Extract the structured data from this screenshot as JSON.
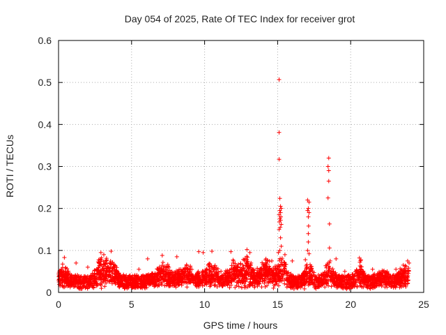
{
  "chart_data": {
    "type": "scatter",
    "title": "Day 054 of 2025, Rate Of TEC Index for receiver grot",
    "xlabel": "GPS time / hours",
    "ylabel": "ROTI / TECUs",
    "xlim": [
      0,
      25
    ],
    "ylim": [
      0,
      0.6
    ],
    "xticks": [
      "0",
      "5",
      "10",
      "15",
      "20",
      "25"
    ],
    "yticks": [
      "0",
      "0.1",
      "0.2",
      "0.3",
      "0.4",
      "0.5",
      "0.6"
    ],
    "grid": true,
    "marker": "+",
    "color": "#ff0000",
    "background": {
      "x_range": [
        0,
        24
      ],
      "base_range": [
        0.01,
        0.04
      ],
      "bumps": [
        {
          "center": 0.3,
          "width": 0.4,
          "amp": 0.03
        },
        {
          "center": 2.9,
          "width": 0.4,
          "amp": 0.05
        },
        {
          "center": 3.6,
          "width": 0.5,
          "amp": 0.04
        },
        {
          "center": 7.2,
          "width": 0.6,
          "amp": 0.035
        },
        {
          "center": 8.8,
          "width": 0.6,
          "amp": 0.03
        },
        {
          "center": 10.4,
          "width": 0.6,
          "amp": 0.035
        },
        {
          "center": 12.0,
          "width": 0.5,
          "amp": 0.04
        },
        {
          "center": 12.9,
          "width": 0.4,
          "amp": 0.05
        },
        {
          "center": 14.2,
          "width": 0.6,
          "amp": 0.045
        },
        {
          "center": 15.3,
          "width": 0.4,
          "amp": 0.05
        },
        {
          "center": 17.1,
          "width": 0.3,
          "amp": 0.04
        },
        {
          "center": 18.5,
          "width": 0.4,
          "amp": 0.04
        },
        {
          "center": 20.6,
          "width": 0.3,
          "amp": 0.04
        },
        {
          "center": 22.2,
          "width": 0.5,
          "amp": 0.02
        },
        {
          "center": 23.7,
          "width": 0.4,
          "amp": 0.03
        }
      ]
    },
    "points": [
      {
        "x": 15.1,
        "y": 0.507
      },
      {
        "x": 15.1,
        "y": 0.381
      },
      {
        "x": 15.1,
        "y": 0.317
      },
      {
        "x": 15.15,
        "y": 0.224
      },
      {
        "x": 15.2,
        "y": 0.205
      },
      {
        "x": 15.25,
        "y": 0.2
      },
      {
        "x": 15.15,
        "y": 0.195
      },
      {
        "x": 15.2,
        "y": 0.19
      },
      {
        "x": 15.1,
        "y": 0.185
      },
      {
        "x": 15.22,
        "y": 0.18
      },
      {
        "x": 15.15,
        "y": 0.176
      },
      {
        "x": 15.2,
        "y": 0.172
      },
      {
        "x": 15.12,
        "y": 0.168
      },
      {
        "x": 15.25,
        "y": 0.162
      },
      {
        "x": 15.18,
        "y": 0.155
      },
      {
        "x": 15.1,
        "y": 0.15
      },
      {
        "x": 15.2,
        "y": 0.13
      },
      {
        "x": 15.25,
        "y": 0.11
      },
      {
        "x": 15.15,
        "y": 0.1
      },
      {
        "x": 15.05,
        "y": 0.095
      },
      {
        "x": 17.05,
        "y": 0.22
      },
      {
        "x": 17.15,
        "y": 0.215
      },
      {
        "x": 17.1,
        "y": 0.2
      },
      {
        "x": 17.05,
        "y": 0.195
      },
      {
        "x": 17.15,
        "y": 0.19
      },
      {
        "x": 17.1,
        "y": 0.18
      },
      {
        "x": 17.12,
        "y": 0.158
      },
      {
        "x": 17.1,
        "y": 0.14
      },
      {
        "x": 17.1,
        "y": 0.12
      },
      {
        "x": 17.05,
        "y": 0.1
      },
      {
        "x": 17.15,
        "y": 0.092
      },
      {
        "x": 18.5,
        "y": 0.32
      },
      {
        "x": 18.45,
        "y": 0.3
      },
      {
        "x": 18.5,
        "y": 0.29
      },
      {
        "x": 18.5,
        "y": 0.265
      },
      {
        "x": 18.45,
        "y": 0.225
      },
      {
        "x": 18.55,
        "y": 0.163
      },
      {
        "x": 18.55,
        "y": 0.106
      },
      {
        "x": 18.45,
        "y": 0.07
      },
      {
        "x": 18.6,
        "y": 0.075
      },
      {
        "x": 0.4,
        "y": 0.083
      },
      {
        "x": 2.9,
        "y": 0.095
      },
      {
        "x": 3.1,
        "y": 0.09
      },
      {
        "x": 3.6,
        "y": 0.098
      },
      {
        "x": 6.1,
        "y": 0.08
      },
      {
        "x": 7.1,
        "y": 0.088
      },
      {
        "x": 8.1,
        "y": 0.085
      },
      {
        "x": 9.6,
        "y": 0.097
      },
      {
        "x": 9.9,
        "y": 0.095
      },
      {
        "x": 10.5,
        "y": 0.098
      },
      {
        "x": 11.8,
        "y": 0.097
      },
      {
        "x": 12.9,
        "y": 0.102
      },
      {
        "x": 13.1,
        "y": 0.095
      },
      {
        "x": 14.2,
        "y": 0.08
      },
      {
        "x": 14.6,
        "y": 0.075
      },
      {
        "x": 15.5,
        "y": 0.09
      },
      {
        "x": 16.0,
        "y": 0.075
      },
      {
        "x": 16.9,
        "y": 0.078
      },
      {
        "x": 19.0,
        "y": 0.08
      },
      {
        "x": 20.6,
        "y": 0.082
      },
      {
        "x": 20.7,
        "y": 0.078
      },
      {
        "x": 23.6,
        "y": 0.065
      },
      {
        "x": 23.9,
        "y": 0.075
      },
      {
        "x": 24.0,
        "y": 0.07
      },
      {
        "x": 23.8,
        "y": 0.062
      },
      {
        "x": 1.2,
        "y": 0.07
      },
      {
        "x": 2.0,
        "y": 0.06
      },
      {
        "x": 5.5,
        "y": 0.055
      },
      {
        "x": 19.6,
        "y": 0.05
      },
      {
        "x": 21.5,
        "y": 0.055
      },
      {
        "x": 22.5,
        "y": 0.05
      },
      {
        "x": 23.1,
        "y": 0.055
      }
    ]
  }
}
